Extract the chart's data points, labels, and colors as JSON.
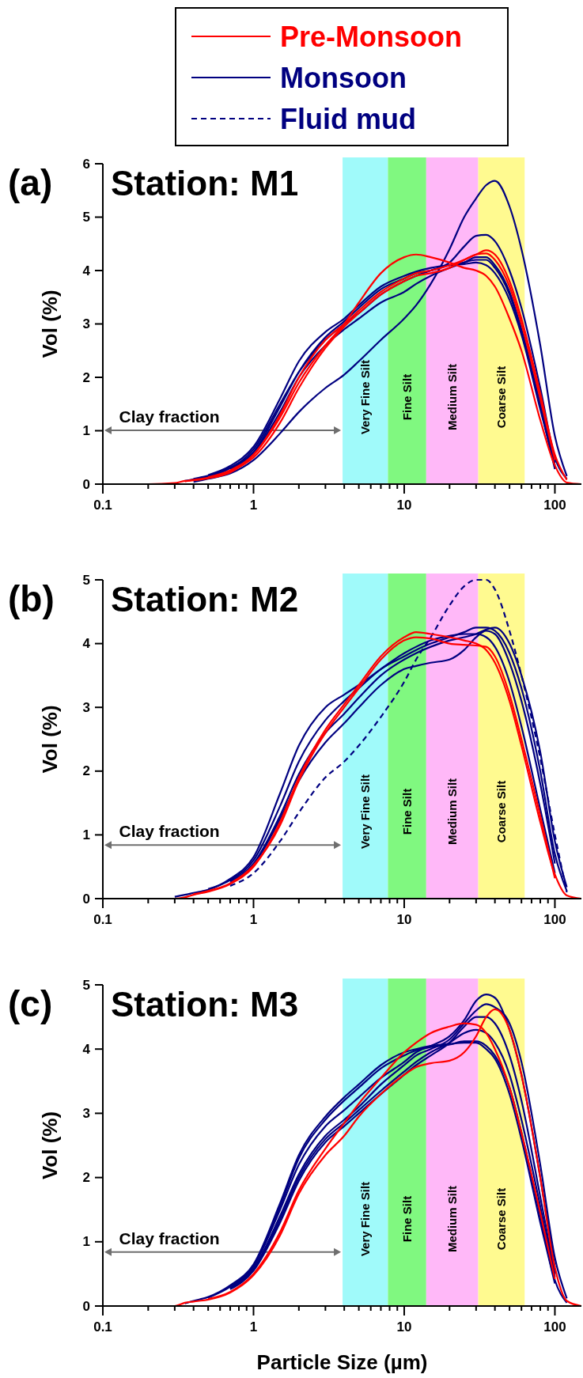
{
  "chart_data": [
    {
      "type": "line",
      "title": "Station: M1",
      "subtitle": "(a)",
      "ylabel": "Vol (%)",
      "legend": "top",
      "grid": false,
      "line_style": "solid",
      "marker": "none",
      "log": "x",
      "xlim": [
        0.1,
        150
      ],
      "ylim": [
        0,
        6
      ],
      "yticks": [
        0,
        1,
        2,
        3,
        4,
        5,
        6
      ],
      "xticks": [
        0.1,
        {
          "value": 0.2,
          "label": null
        },
        {
          "value": 0.3,
          "label": null
        },
        {
          "value": 0.4,
          "label": null
        },
        {
          "value": 0.5,
          "label": null
        },
        {
          "value": 0.6,
          "label": null
        },
        {
          "value": 0.7,
          "label": null
        },
        {
          "value": 0.8,
          "label": null
        },
        {
          "value": 0.9,
          "label": null
        },
        1,
        {
          "value": 2,
          "label": null
        },
        {
          "value": 3,
          "label": null
        },
        {
          "value": 4,
          "label": null
        },
        {
          "value": 5,
          "label": null
        },
        {
          "value": 6,
          "label": null
        },
        {
          "value": 7,
          "label": null
        },
        {
          "value": 8,
          "label": null
        },
        {
          "value": 9,
          "label": null
        },
        10,
        {
          "value": 20,
          "label": null
        },
        {
          "value": 30,
          "label": null
        },
        {
          "value": 40,
          "label": null
        },
        {
          "value": 50,
          "label": null
        },
        {
          "value": 60,
          "label": null
        },
        {
          "value": 70,
          "label": null
        },
        {
          "value": 80,
          "label": null
        },
        {
          "value": 90,
          "label": null
        },
        100
      ],
      "x": [
        0.1,
        0.2,
        0.3,
        0.35,
        0.4,
        0.5,
        0.7,
        1,
        1.5,
        2,
        3,
        4,
        5,
        7,
        10,
        12,
        15,
        20,
        25,
        30,
        35,
        40,
        50,
        60,
        80,
        100,
        120,
        150
      ],
      "bands": [
        {
          "axis": "x",
          "from": 3.9,
          "to": 7.8,
          "label": "Very Fine Silt",
          "color": "#a0fafa"
        },
        {
          "axis": "x",
          "from": 7.8,
          "to": 14,
          "label": "Fine Silt",
          "color": "#80f880"
        },
        {
          "axis": "x",
          "from": 14,
          "to": 31,
          "label": "Medium Silt",
          "color": "#ffb8f8"
        },
        {
          "axis": "x",
          "from": 31,
          "to": 63,
          "label": "Coarse Silt",
          "color": "#fffa90"
        }
      ],
      "annotations": [
        "Clay fraction"
      ],
      "series": [
        {
          "name": "Monsoon",
          "color": "#000080",
          "values": [
            null,
            null,
            null,
            null,
            0.04,
            0.1,
            0.2,
            0.45,
            0.95,
            1.35,
            1.8,
            2.05,
            2.3,
            2.7,
            3.1,
            3.35,
            3.75,
            4.4,
            5.0,
            5.35,
            5.6,
            5.68,
            5.2,
            4.4,
            2.6,
            0.9,
            0.15,
            null
          ]
        },
        {
          "color": "#000080",
          "values": [
            null,
            null,
            null,
            0.06,
            0.09,
            0.14,
            0.3,
            0.65,
            1.5,
            2.1,
            2.7,
            3.0,
            3.2,
            3.55,
            3.8,
            3.9,
            4.0,
            4.15,
            4.45,
            4.65,
            4.67,
            4.55,
            4.0,
            3.3,
            1.8,
            0.5,
            0.1,
            null
          ]
        },
        {
          "color": "#000080",
          "values": [
            null,
            null,
            null,
            null,
            0.1,
            0.16,
            0.31,
            0.6,
            1.45,
            2.1,
            2.75,
            3.05,
            3.3,
            3.65,
            3.85,
            3.95,
            4.0,
            4.1,
            4.15,
            4.25,
            4.25,
            4.1,
            3.6,
            2.9,
            1.5,
            0.4,
            null,
            null
          ]
        },
        {
          "color": "#000080",
          "values": [
            null,
            null,
            null,
            null,
            null,
            0.17,
            0.34,
            0.7,
            1.6,
            2.3,
            2.85,
            3.1,
            3.35,
            3.7,
            3.9,
            3.98,
            4.05,
            4.1,
            4.12,
            4.15,
            4.1,
            3.95,
            3.45,
            2.8,
            1.4,
            0.35,
            null,
            null
          ]
        },
        {
          "color": "#000080",
          "values": [
            null,
            null,
            null,
            null,
            null,
            null,
            0.28,
            0.58,
            1.35,
            2.0,
            2.6,
            2.9,
            3.1,
            3.4,
            3.6,
            3.75,
            3.9,
            4.05,
            4.15,
            4.2,
            4.2,
            4.05,
            3.55,
            2.85,
            1.45,
            0.28,
            null,
            null
          ]
        },
        {
          "color": "#ff0000",
          "values": [
            null,
            null,
            null,
            null,
            null,
            0.13,
            0.26,
            0.55,
            1.3,
            2.0,
            2.7,
            3.0,
            3.25,
            3.6,
            3.85,
            3.95,
            4.0,
            4.1,
            4.2,
            4.3,
            4.32,
            4.2,
            3.7,
            3.0,
            1.6,
            0.45,
            null,
            null
          ]
        },
        {
          "color": "#ff0000",
          "values": [
            null,
            null,
            null,
            0.05,
            0.08,
            0.12,
            0.24,
            0.5,
            1.15,
            1.8,
            2.55,
            2.95,
            3.2,
            3.55,
            3.8,
            3.9,
            3.95,
            4.05,
            4.2,
            4.3,
            4.38,
            4.3,
            3.8,
            3.1,
            1.7,
            0.55,
            0.08,
            null
          ]
        },
        {
          "name": "Pre-Monsoon",
          "color": "#ff0000",
          "values": [
            0,
            0,
            0.02,
            0.06,
            0.07,
            0.11,
            0.22,
            0.55,
            1.25,
            1.9,
            2.6,
            3.0,
            3.4,
            3.95,
            4.25,
            4.3,
            4.25,
            4.15,
            4.05,
            4.0,
            3.9,
            3.7,
            3.1,
            2.5,
            1.2,
            0.35,
            0.03,
            0
          ]
        }
      ]
    },
    {
      "type": "line",
      "title": "Station: M2",
      "subtitle": "(b)",
      "ylabel": "Vol (%)",
      "grid": false,
      "line_style": "solid",
      "marker": "none",
      "log": "x",
      "xlim": [
        0.1,
        150
      ],
      "ylim": [
        0,
        5
      ],
      "yticks": [
        0,
        1,
        2,
        3,
        4,
        5
      ],
      "xticks": [
        0.1,
        {
          "value": 0.2,
          "label": null
        },
        {
          "value": 0.3,
          "label": null
        },
        {
          "value": 0.4,
          "label": null
        },
        {
          "value": 0.5,
          "label": null
        },
        {
          "value": 0.6,
          "label": null
        },
        {
          "value": 0.7,
          "label": null
        },
        {
          "value": 0.8,
          "label": null
        },
        {
          "value": 0.9,
          "label": null
        },
        1,
        {
          "value": 2,
          "label": null
        },
        {
          "value": 3,
          "label": null
        },
        {
          "value": 4,
          "label": null
        },
        {
          "value": 5,
          "label": null
        },
        {
          "value": 6,
          "label": null
        },
        {
          "value": 7,
          "label": null
        },
        {
          "value": 8,
          "label": null
        },
        {
          "value": 9,
          "label": null
        },
        10,
        {
          "value": 20,
          "label": null
        },
        {
          "value": 30,
          "label": null
        },
        {
          "value": 40,
          "label": null
        },
        {
          "value": 50,
          "label": null
        },
        {
          "value": 60,
          "label": null
        },
        {
          "value": 70,
          "label": null
        },
        {
          "value": 80,
          "label": null
        },
        {
          "value": 90,
          "label": null
        },
        100
      ],
      "x": [
        0.1,
        0.2,
        0.3,
        0.35,
        0.4,
        0.5,
        0.7,
        1,
        1.5,
        2,
        3,
        4,
        5,
        7,
        10,
        12,
        15,
        20,
        25,
        30,
        35,
        40,
        50,
        60,
        80,
        100,
        120,
        150
      ],
      "bands": [
        {
          "axis": "x",
          "from": 3.9,
          "to": 7.8,
          "label": "Very Fine Silt",
          "color": "#a0fafa"
        },
        {
          "axis": "x",
          "from": 7.8,
          "to": 14,
          "label": "Fine Silt",
          "color": "#80f880"
        },
        {
          "axis": "x",
          "from": 14,
          "to": 31,
          "label": "Medium Silt",
          "color": "#ffb8f8"
        },
        {
          "axis": "x",
          "from": 31,
          "to": 63,
          "label": "Coarse Silt",
          "color": "#fffa90"
        }
      ],
      "annotations": [
        "Clay fraction"
      ],
      "series": [
        {
          "color": "#000080",
          "values": [
            null,
            null,
            0.03,
            0.06,
            0.09,
            0.14,
            0.31,
            0.65,
            1.65,
            2.4,
            3.0,
            3.2,
            3.35,
            3.6,
            3.85,
            3.95,
            4.05,
            4.12,
            4.15,
            4.15,
            4.1,
            3.95,
            3.4,
            2.7,
            1.4,
            0.4,
            null,
            null
          ]
        },
        {
          "color": "#000080",
          "values": [
            null,
            null,
            null,
            null,
            null,
            0.15,
            0.29,
            0.6,
            1.45,
            2.15,
            2.8,
            3.1,
            3.3,
            3.6,
            3.8,
            3.9,
            4.0,
            4.1,
            4.18,
            4.25,
            4.25,
            4.2,
            3.85,
            3.3,
            2.0,
            0.7,
            0.12,
            null
          ]
        },
        {
          "color": "#000080",
          "values": [
            null,
            null,
            null,
            null,
            null,
            null,
            0.27,
            0.55,
            1.3,
            1.95,
            2.6,
            2.9,
            3.15,
            3.5,
            3.75,
            3.85,
            3.95,
            4.05,
            4.1,
            4.15,
            4.22,
            4.25,
            4.0,
            3.5,
            2.3,
            0.9,
            0.18,
            null
          ]
        },
        {
          "color": "#000080",
          "values": [
            null,
            null,
            null,
            null,
            null,
            null,
            0.25,
            0.53,
            1.25,
            1.85,
            2.45,
            2.75,
            3.0,
            3.35,
            3.6,
            3.65,
            3.7,
            3.75,
            3.9,
            4.1,
            4.2,
            4.15,
            3.7,
            3.1,
            1.8,
            0.55,
            null,
            null
          ]
        },
        {
          "name": "Fluid mud",
          "color": "#000080",
          "line_style": "dashed",
          "values": [
            null,
            null,
            null,
            null,
            null,
            null,
            0.2,
            0.4,
            0.9,
            1.35,
            1.9,
            2.15,
            2.4,
            2.85,
            3.4,
            3.75,
            4.1,
            4.6,
            4.9,
            5.0,
            5.0,
            4.85,
            4.2,
            3.5,
            2.2,
            1.0,
            0.1,
            null
          ]
        },
        {
          "color": "#ff0000",
          "values": [
            null,
            null,
            null,
            null,
            0.07,
            0.12,
            0.24,
            0.52,
            1.15,
            1.85,
            2.6,
            3.0,
            3.3,
            3.75,
            4.05,
            4.1,
            4.08,
            4.0,
            3.98,
            3.97,
            3.95,
            3.8,
            3.2,
            2.5,
            1.3,
            0.32,
            null,
            null
          ]
        },
        {
          "color": "#ff0000",
          "values": [
            0,
            0,
            0,
            0.02,
            0.06,
            0.11,
            0.23,
            0.5,
            1.2,
            1.9,
            2.65,
            3.05,
            3.35,
            3.8,
            4.1,
            4.18,
            4.15,
            4.1,
            4.05,
            4.0,
            3.9,
            3.7,
            3.1,
            2.4,
            1.2,
            0.38,
            0.05,
            0
          ]
        }
      ]
    },
    {
      "type": "line",
      "title": "Station: M3",
      "subtitle": "(c)",
      "xlabel": "Particle Size (µm)",
      "ylabel": "Vol (%)",
      "grid": false,
      "line_style": "solid",
      "marker": "none",
      "log": "x",
      "xlim": [
        0.1,
        150
      ],
      "ylim": [
        0,
        5
      ],
      "yticks": [
        0,
        1,
        2,
        3,
        4,
        5
      ],
      "xticks": [
        0.1,
        {
          "value": 0.2,
          "label": null
        },
        {
          "value": 0.3,
          "label": null
        },
        {
          "value": 0.4,
          "label": null
        },
        {
          "value": 0.5,
          "label": null
        },
        {
          "value": 0.6,
          "label": null
        },
        {
          "value": 0.7,
          "label": null
        },
        {
          "value": 0.8,
          "label": null
        },
        {
          "value": 0.9,
          "label": null
        },
        1,
        {
          "value": 2,
          "label": null
        },
        {
          "value": 3,
          "label": null
        },
        {
          "value": 4,
          "label": null
        },
        {
          "value": 5,
          "label": null
        },
        {
          "value": 6,
          "label": null
        },
        {
          "value": 7,
          "label": null
        },
        {
          "value": 8,
          "label": null
        },
        {
          "value": 9,
          "label": null
        },
        10,
        {
          "value": 20,
          "label": null
        },
        {
          "value": 30,
          "label": null
        },
        {
          "value": 40,
          "label": null
        },
        {
          "value": 50,
          "label": null
        },
        {
          "value": 60,
          "label": null
        },
        {
          "value": 70,
          "label": null
        },
        {
          "value": 80,
          "label": null
        },
        {
          "value": 90,
          "label": null
        },
        100
      ],
      "x": [
        0.1,
        0.2,
        0.3,
        0.35,
        0.4,
        0.5,
        0.7,
        1,
        1.5,
        2,
        3,
        4,
        5,
        7,
        10,
        12,
        15,
        20,
        25,
        30,
        35,
        40,
        50,
        60,
        80,
        100,
        120,
        150
      ],
      "bands": [
        {
          "axis": "x",
          "from": 3.9,
          "to": 7.8,
          "label": "Very Fine Silt",
          "color": "#a0fafa"
        },
        {
          "axis": "x",
          "from": 7.8,
          "to": 14,
          "label": "Fine Silt",
          "color": "#80f880"
        },
        {
          "axis": "x",
          "from": 14,
          "to": 31,
          "label": "Medium Silt",
          "color": "#ffb8f8"
        },
        {
          "axis": "x",
          "from": 31,
          "to": 63,
          "label": "Coarse Silt",
          "color": "#fffa90"
        }
      ],
      "annotations": [
        "Clay fraction"
      ],
      "series": [
        {
          "color": "#000080",
          "values": [
            null,
            null,
            null,
            null,
            null,
            0.13,
            0.3,
            0.62,
            1.5,
            2.2,
            2.8,
            3.05,
            3.25,
            3.55,
            3.8,
            3.95,
            4.05,
            4.2,
            4.45,
            4.75,
            4.85,
            4.8,
            4.3,
            3.6,
            2.0,
            0.6,
            null,
            null
          ]
        },
        {
          "color": "#000080",
          "values": [
            null,
            null,
            null,
            null,
            null,
            null,
            0.27,
            0.58,
            1.4,
            2.05,
            2.65,
            2.9,
            3.1,
            3.45,
            3.75,
            3.9,
            4.0,
            4.15,
            4.4,
            4.6,
            4.7,
            4.65,
            4.4,
            3.8,
            2.2,
            0.75,
            0.12,
            null
          ]
        },
        {
          "color": "#000080",
          "values": [
            null,
            null,
            null,
            null,
            null,
            null,
            0.26,
            0.55,
            1.3,
            1.95,
            2.55,
            2.8,
            3.0,
            3.3,
            3.6,
            3.75,
            3.9,
            4.1,
            4.35,
            4.5,
            4.5,
            4.4,
            3.9,
            3.2,
            1.7,
            0.5,
            null,
            null
          ]
        },
        {
          "color": "#000080",
          "values": [
            null,
            null,
            null,
            null,
            null,
            null,
            0.28,
            0.56,
            1.35,
            2.0,
            2.6,
            2.85,
            3.05,
            3.35,
            3.65,
            3.8,
            3.95,
            4.1,
            4.25,
            4.3,
            4.25,
            4.1,
            3.6,
            2.9,
            1.55,
            0.45,
            null,
            null
          ]
        },
        {
          "color": "#000080",
          "values": [
            null,
            null,
            null,
            0.04,
            0.08,
            0.14,
            0.32,
            0.65,
            1.6,
            2.35,
            2.95,
            3.25,
            3.45,
            3.75,
            3.95,
            4.0,
            4.05,
            4.08,
            4.1,
            4.1,
            4.0,
            3.85,
            3.3,
            2.6,
            1.3,
            0.35,
            null,
            null
          ]
        },
        {
          "color": "#000080",
          "values": [
            null,
            null,
            null,
            null,
            null,
            null,
            0.29,
            0.62,
            1.55,
            2.3,
            2.9,
            3.2,
            3.4,
            3.7,
            3.9,
            3.98,
            4.03,
            4.07,
            4.12,
            4.12,
            4.05,
            3.9,
            3.4,
            2.7,
            1.4,
            0.4,
            0.05,
            null
          ]
        },
        {
          "color": "#ff0000",
          "values": [
            null,
            null,
            null,
            null,
            null,
            0.11,
            0.22,
            0.5,
            1.15,
            1.8,
            2.45,
            2.85,
            3.15,
            3.55,
            3.95,
            4.1,
            4.25,
            4.35,
            4.4,
            4.38,
            4.25,
            4.0,
            3.4,
            2.7,
            1.45,
            0.42,
            null,
            null
          ]
        },
        {
          "color": "#ff0000",
          "values": [
            0,
            0,
            0,
            0.05,
            0.07,
            0.1,
            0.21,
            0.48,
            1.1,
            1.75,
            2.35,
            2.65,
            2.95,
            3.3,
            3.6,
            3.72,
            3.78,
            3.82,
            3.95,
            4.2,
            4.5,
            4.62,
            4.3,
            3.6,
            2.0,
            0.6,
            0.08,
            0
          ]
        }
      ]
    }
  ]
}
